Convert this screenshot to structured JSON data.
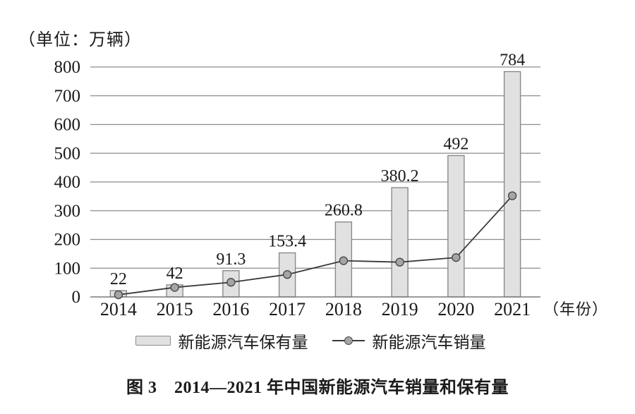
{
  "unit_label": "（单位：万辆）",
  "x_axis_suffix": "（年份）",
  "caption": "图 3　2014—2021 年中国新能源汽车销量和保有量",
  "legend": [
    {
      "label": "新能源汽车保有量",
      "swatch": "bar"
    },
    {
      "label": "新能源汽车销量",
      "swatch": "line-dot"
    }
  ],
  "chart_data": {
    "type": "bar",
    "title": "图 3　2014—2021 年中国新能源汽车销量和保有量",
    "xlabel": "（年份）",
    "ylabel": "（单位：万辆）",
    "categories": [
      "2014",
      "2015",
      "2016",
      "2017",
      "2018",
      "2019",
      "2020",
      "2021"
    ],
    "series": [
      {
        "name": "新能源汽车保有量",
        "type": "bar",
        "values": [
          22,
          42,
          91.3,
          153.4,
          260.8,
          380.2,
          492,
          784
        ],
        "labels": [
          "22",
          "42",
          "91.3",
          "153.4",
          "260.8",
          "380.2",
          "492",
          "784"
        ]
      },
      {
        "name": "新能源汽车销量",
        "type": "line",
        "values": [
          7.5,
          33,
          51,
          78,
          126,
          121,
          137,
          352
        ]
      }
    ],
    "ylim": [
      0,
      800
    ],
    "ytick_labels": [
      "0",
      "100",
      "200",
      "300",
      "400",
      "500",
      "600",
      "700",
      "800"
    ],
    "grid": "horizontal",
    "legend_position": "bottom",
    "colors": {
      "bar_fill": "#e1e1e1",
      "bar_stroke": "#8a8a8a",
      "grid": "#8c8c8c",
      "axis": "#7a7a7a",
      "line": "#3d3835",
      "marker_fill": "#a5a5a5",
      "marker_stroke": "#4a4a4a",
      "text": "#1a1a1a"
    }
  }
}
